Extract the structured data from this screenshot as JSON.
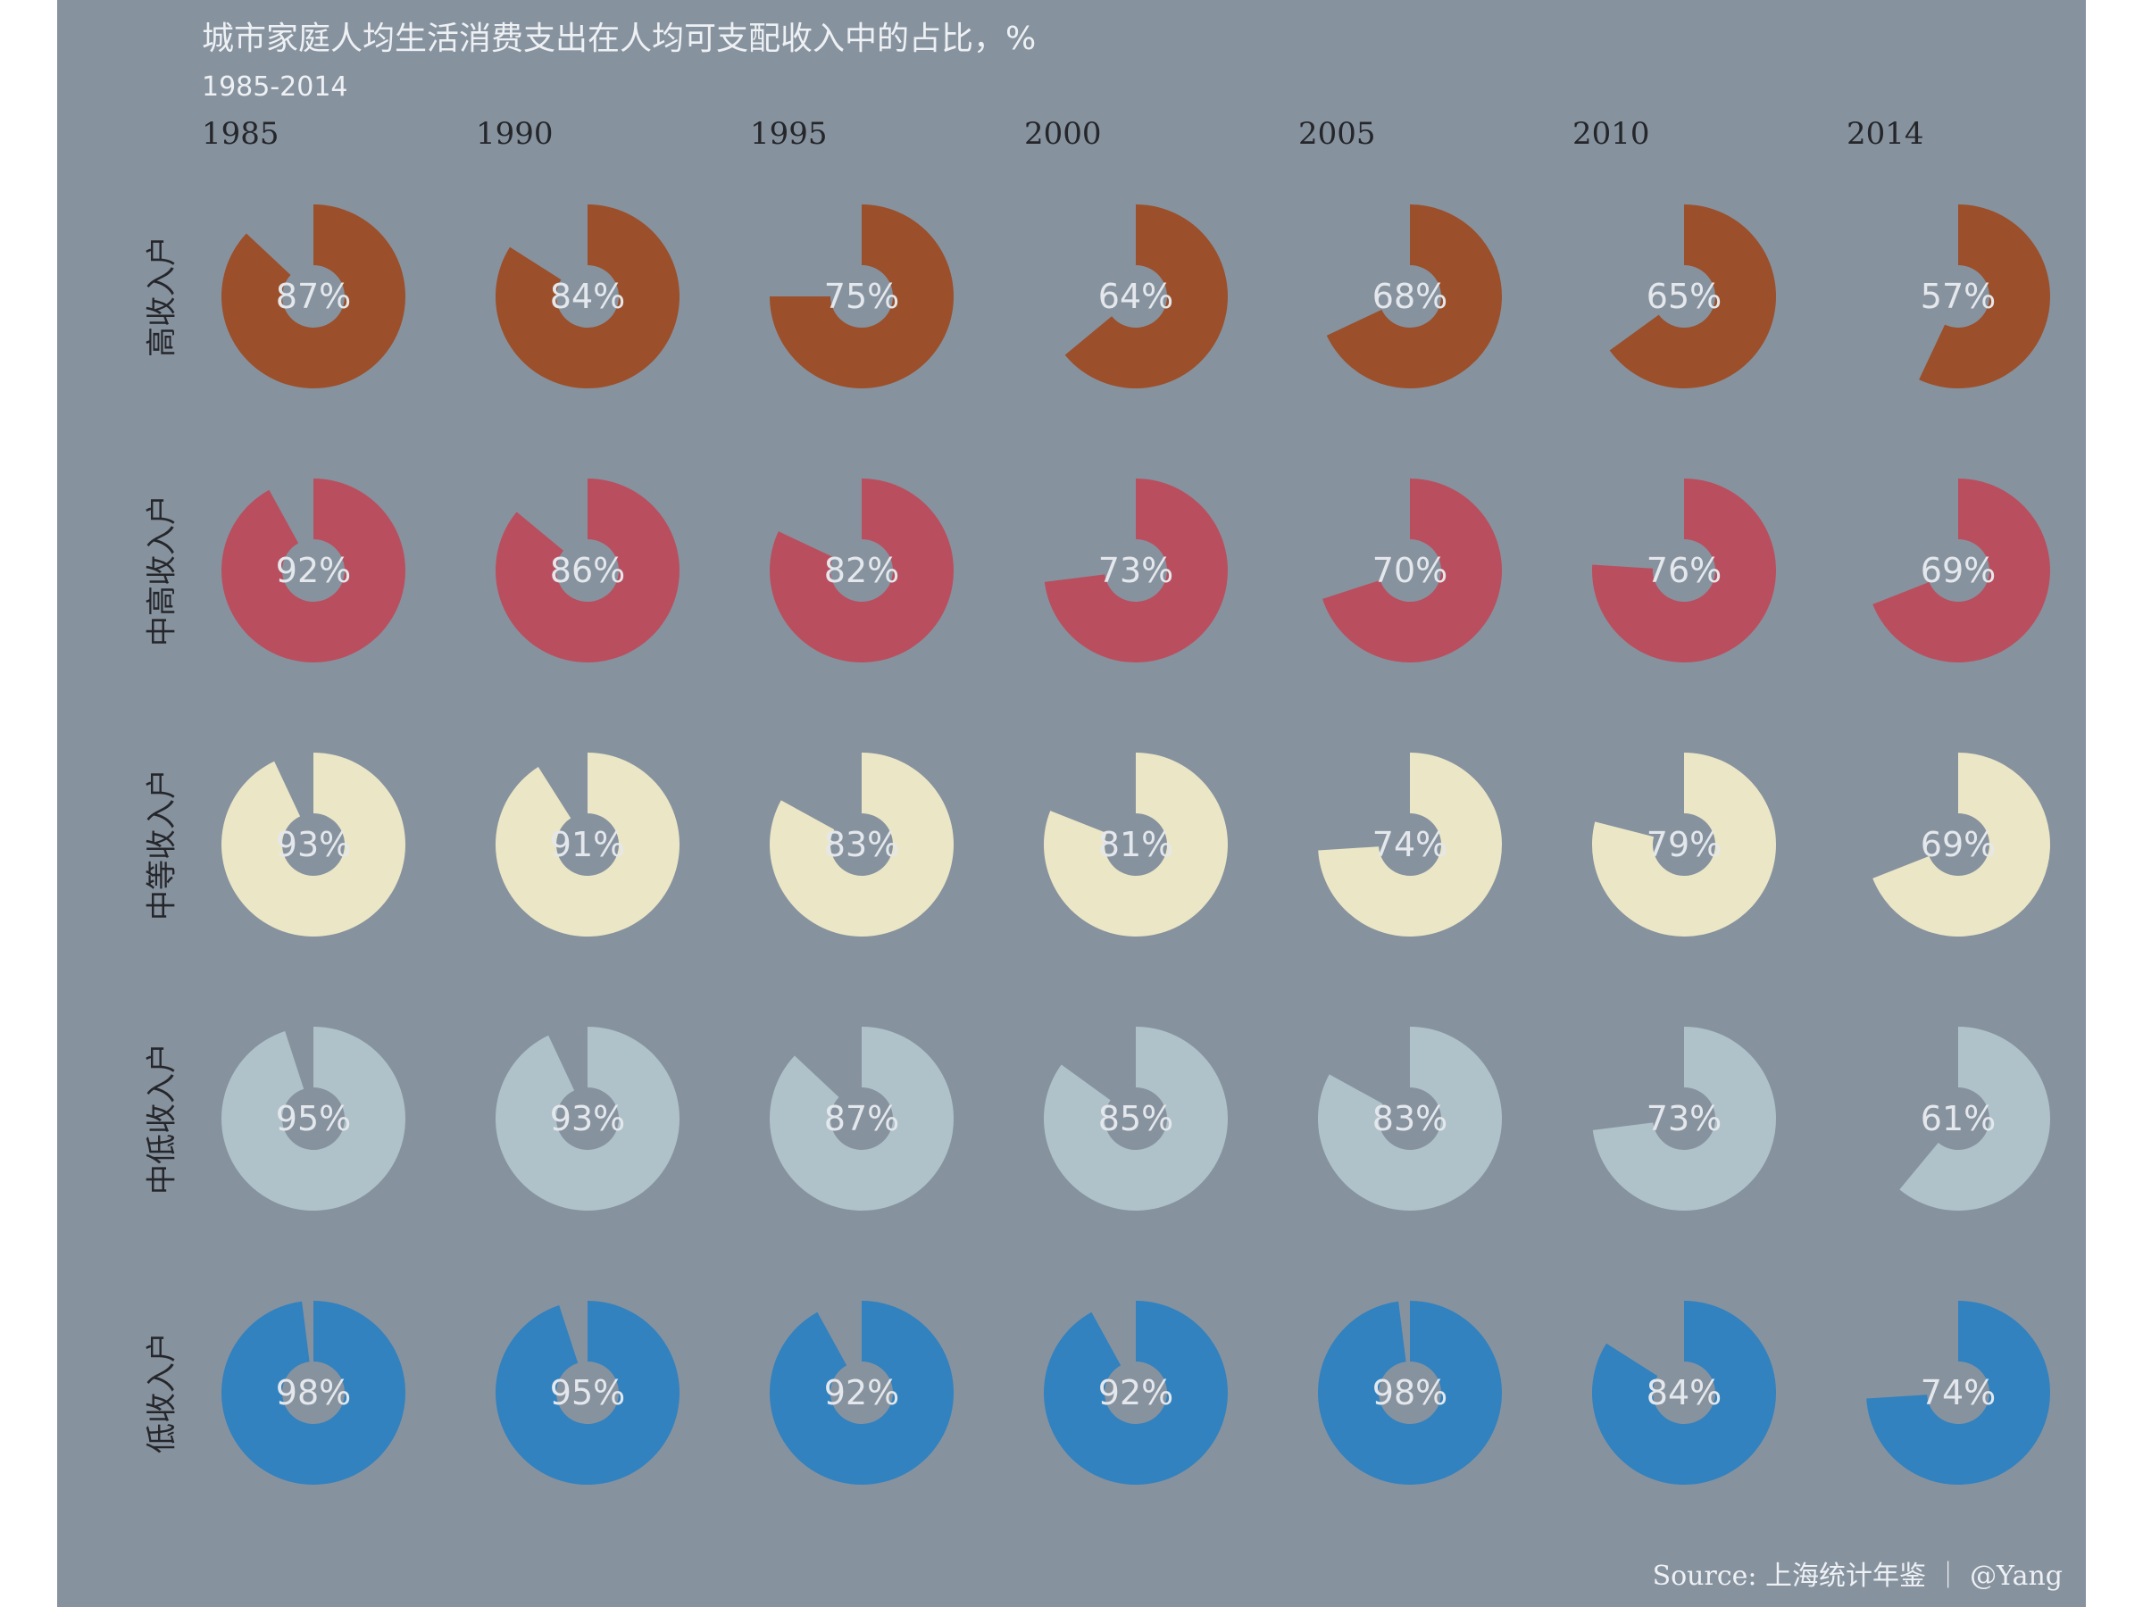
{
  "title": "城市家庭人均生活消费支出在人均可支配收入中的占比，%",
  "subtitle": "1985-2014",
  "source": "Source: 上海统计年鉴 ｜ @Yang",
  "chart_data": {
    "type": "donut-grid",
    "title": "城市家庭人均生活消费支出在人均可支配收入中的占比，%",
    "subtitle": "1985-2014",
    "unit": "%",
    "columns": [
      "1985",
      "1990",
      "1995",
      "2000",
      "2005",
      "2010",
      "2014"
    ],
    "series": [
      {
        "name": "高收入户",
        "color": "#9b4f2a",
        "values": [
          87,
          84,
          75,
          64,
          68,
          65,
          57
        ]
      },
      {
        "name": "中高收入户",
        "color": "#b94f5e",
        "values": [
          92,
          86,
          82,
          73,
          70,
          76,
          69
        ]
      },
      {
        "name": "中等收入户",
        "color": "#ebe7c6",
        "values": [
          93,
          91,
          83,
          81,
          74,
          79,
          69
        ]
      },
      {
        "name": "中低收入户",
        "color": "#afc2c9",
        "values": [
          95,
          93,
          87,
          85,
          83,
          73,
          61
        ]
      },
      {
        "name": "低收入户",
        "color": "#3182bf",
        "values": [
          98,
          95,
          92,
          92,
          98,
          84,
          74
        ]
      }
    ],
    "range": [
      0,
      100
    ]
  }
}
